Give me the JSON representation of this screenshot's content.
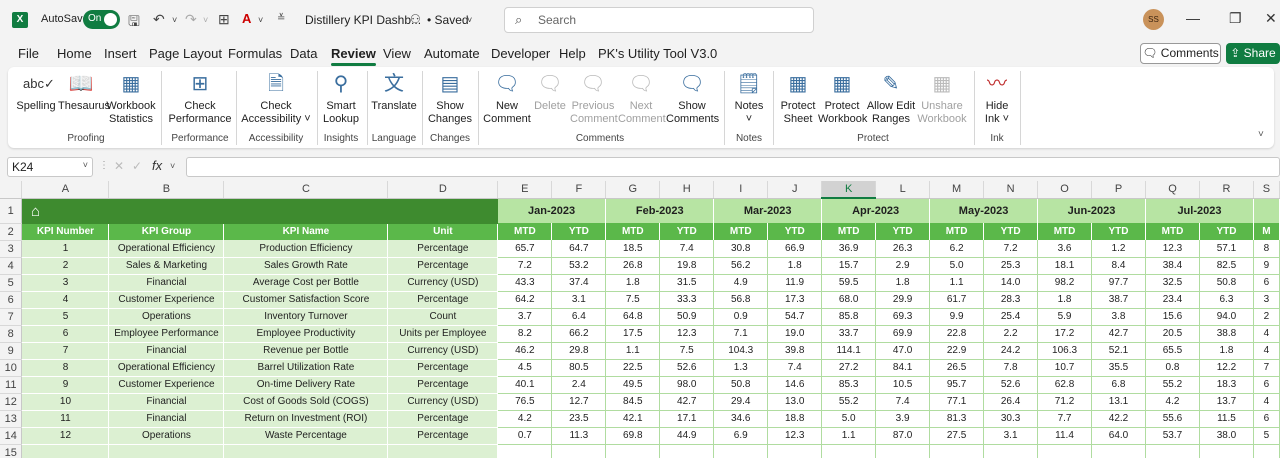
{
  "titlebar": {
    "app_logo": "X",
    "autosave_label": "AutoSave",
    "toggle_label": "On",
    "doc_title": "Distillery KPI Dashb...",
    "saved_label": "• Saved",
    "search_placeholder": "Search",
    "avatar_initials": "SS"
  },
  "menu": [
    "File",
    "Home",
    "Insert",
    "Page Layout",
    "Formulas",
    "Data",
    "Review",
    "View",
    "Automate",
    "Developer",
    "Help",
    "PK's Utility Tool V3.0"
  ],
  "active_menu": "Review",
  "comments_button": "Comments",
  "share_button": "Share",
  "ribbon": {
    "buttons": {
      "spelling": "Spelling",
      "thesaurus": "Thesaurus",
      "workbook_statistics_1": "Workbook",
      "workbook_statistics_2": "Statistics",
      "check_performance_1": "Check",
      "check_performance_2": "Performance",
      "check_accessibility_1": "Check",
      "check_accessibility_2": "Accessibility ˅",
      "smart_lookup_1": "Smart",
      "smart_lookup_2": "Lookup",
      "translate": "Translate",
      "show_changes_1": "Show",
      "show_changes_2": "Changes",
      "new_comment_1": "New",
      "new_comment_2": "Comment",
      "delete": "Delete",
      "previous_comment_1": "Previous",
      "previous_comment_2": "Comment",
      "next_comment_1": "Next",
      "next_comment_2": "Comment",
      "show_comments_1": "Show",
      "show_comments_2": "Comments",
      "notes_1": "Notes",
      "notes_2": "˅",
      "protect_sheet_1": "Protect",
      "protect_sheet_2": "Sheet",
      "protect_workbook_1": "Protect",
      "protect_workbook_2": "Workbook",
      "allow_edit_ranges_1": "Allow Edit",
      "allow_edit_ranges_2": "Ranges",
      "unshare_workbook_1": "Unshare",
      "unshare_workbook_2": "Workbook",
      "hide_ink_1": "Hide",
      "hide_ink_2": "Ink ˅"
    },
    "groups": {
      "proofing": "Proofing",
      "performance": "Performance",
      "accessibility": "Accessibility",
      "insights": "Insights",
      "language": "Language",
      "changes": "Changes",
      "comments": "Comments",
      "notes": "Notes",
      "protect": "Protect",
      "ink": "Ink"
    }
  },
  "namebox": "K24",
  "fx": "fx",
  "columns": [
    "A",
    "B",
    "C",
    "D",
    "E",
    "F",
    "G",
    "H",
    "I",
    "J",
    "K",
    "L",
    "M",
    "N",
    "O",
    "P",
    "Q",
    "R",
    "S"
  ],
  "selected_column": "K",
  "months": [
    "Jan-2023",
    "Feb-2023",
    "Mar-2023",
    "Apr-2023",
    "May-2023",
    "Jun-2023",
    "Jul-2023"
  ],
  "headers": [
    "KPI Number",
    "KPI Group",
    "KPI Name",
    "Unit"
  ],
  "mtd": "MTD",
  "ytd": "YTD",
  "rows": [
    {
      "num": "1",
      "group": "Operational Efficiency",
      "name": "Production Efficiency",
      "unit": "Percentage",
      "vals": [
        "65.7",
        "64.7",
        "18.5",
        "7.4",
        "30.8",
        "66.9",
        "36.9",
        "26.3",
        "6.2",
        "7.2",
        "3.6",
        "1.2",
        "12.3",
        "57.1",
        "8"
      ]
    },
    {
      "num": "2",
      "group": "Sales & Marketing",
      "name": "Sales Growth Rate",
      "unit": "Percentage",
      "vals": [
        "7.2",
        "53.2",
        "26.8",
        "19.8",
        "56.2",
        "1.8",
        "15.7",
        "2.9",
        "5.0",
        "25.3",
        "18.1",
        "8.4",
        "38.4",
        "82.5",
        "9"
      ]
    },
    {
      "num": "3",
      "group": "Financial",
      "name": "Average Cost per Bottle",
      "unit": "Currency (USD)",
      "vals": [
        "43.3",
        "37.4",
        "1.8",
        "31.5",
        "4.9",
        "11.9",
        "59.5",
        "1.8",
        "1.1",
        "14.0",
        "98.2",
        "97.7",
        "32.5",
        "50.8",
        "6"
      ]
    },
    {
      "num": "4",
      "group": "Customer Experience",
      "name": "Customer Satisfaction Score",
      "unit": "Percentage",
      "vals": [
        "64.2",
        "3.1",
        "7.5",
        "33.3",
        "56.8",
        "17.3",
        "68.0",
        "29.9",
        "61.7",
        "28.3",
        "1.8",
        "38.7",
        "23.4",
        "6.3",
        "3"
      ]
    },
    {
      "num": "5",
      "group": "Operations",
      "name": "Inventory Turnover",
      "unit": "Count",
      "vals": [
        "3.7",
        "6.4",
        "64.8",
        "50.9",
        "0.9",
        "54.7",
        "85.8",
        "69.3",
        "9.9",
        "25.4",
        "5.9",
        "3.8",
        "15.6",
        "94.0",
        "2"
      ]
    },
    {
      "num": "6",
      "group": "Employee Performance",
      "name": "Employee Productivity",
      "unit": "Units per Employee",
      "vals": [
        "8.2",
        "66.2",
        "17.5",
        "12.3",
        "7.1",
        "19.0",
        "33.7",
        "69.9",
        "22.8",
        "2.2",
        "17.2",
        "42.7",
        "20.5",
        "38.8",
        "4"
      ]
    },
    {
      "num": "7",
      "group": "Financial",
      "name": "Revenue per Bottle",
      "unit": "Currency (USD)",
      "vals": [
        "46.2",
        "29.8",
        "1.1",
        "7.5",
        "104.3",
        "39.8",
        "114.1",
        "47.0",
        "22.9",
        "24.2",
        "106.3",
        "52.1",
        "65.5",
        "1.8",
        "4"
      ]
    },
    {
      "num": "8",
      "group": "Operational Efficiency",
      "name": "Barrel Utilization Rate",
      "unit": "Percentage",
      "vals": [
        "4.5",
        "80.5",
        "22.5",
        "52.6",
        "1.3",
        "7.4",
        "27.2",
        "84.1",
        "26.5",
        "7.8",
        "10.7",
        "35.5",
        "0.8",
        "12.2",
        "7"
      ]
    },
    {
      "num": "9",
      "group": "Customer Experience",
      "name": "On-time Delivery Rate",
      "unit": "Percentage",
      "vals": [
        "40.1",
        "2.4",
        "49.5",
        "98.0",
        "50.8",
        "14.6",
        "85.3",
        "10.5",
        "95.7",
        "52.6",
        "62.8",
        "6.8",
        "55.2",
        "18.3",
        "6"
      ]
    },
    {
      "num": "10",
      "group": "Financial",
      "name": "Cost of Goods Sold (COGS)",
      "unit": "Currency (USD)",
      "vals": [
        "76.5",
        "12.7",
        "84.5",
        "42.7",
        "29.4",
        "13.0",
        "55.2",
        "7.4",
        "77.1",
        "26.4",
        "71.2",
        "13.1",
        "4.2",
        "13.7",
        "4"
      ]
    },
    {
      "num": "11",
      "group": "Financial",
      "name": "Return on Investment (ROI)",
      "unit": "Percentage",
      "vals": [
        "4.2",
        "23.5",
        "42.1",
        "17.1",
        "34.6",
        "18.8",
        "5.0",
        "3.9",
        "81.3",
        "30.3",
        "7.7",
        "42.2",
        "55.6",
        "11.5",
        "6"
      ]
    },
    {
      "num": "12",
      "group": "Operations",
      "name": "Waste Percentage",
      "unit": "Percentage",
      "vals": [
        "0.7",
        "11.3",
        "69.8",
        "44.9",
        "6.9",
        "12.3",
        "1.1",
        "87.0",
        "27.5",
        "3.1",
        "11.4",
        "64.0",
        "53.7",
        "38.0",
        "5"
      ]
    }
  ],
  "row15": "15",
  "m_clip": "M"
}
